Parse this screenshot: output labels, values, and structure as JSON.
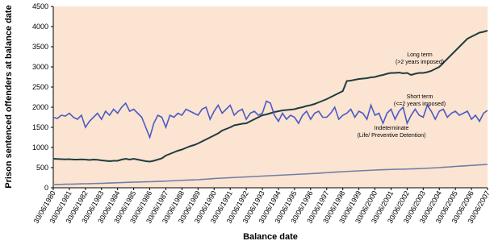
{
  "chart_data": {
    "type": "line",
    "x_label": "Balance date",
    "y_label": "Prison sentenced offenders at balance date",
    "ylim": [
      0,
      4500
    ],
    "yticks": [
      0,
      500,
      1000,
      1500,
      2000,
      2500,
      3000,
      3500,
      4000,
      4500
    ],
    "grid": false,
    "plot_background": "#fce4d2",
    "categories": [
      "30/06/1980",
      null,
      null,
      null,
      "30/06/1981",
      null,
      null,
      null,
      "30/06/1982",
      null,
      null,
      null,
      "30/06/1983",
      null,
      null,
      null,
      "30/06/1984",
      null,
      null,
      null,
      "30/06/1985",
      null,
      null,
      null,
      "30/06/1986",
      null,
      null,
      null,
      "30/06/1987",
      null,
      null,
      null,
      "30/06/1988",
      null,
      null,
      null,
      "30/06/1989",
      null,
      null,
      null,
      "30/06/1990",
      null,
      null,
      null,
      "30/06/1991",
      null,
      null,
      null,
      "30/06/1992",
      null,
      null,
      null,
      "30/06/1993",
      null,
      null,
      null,
      "30/06/1994",
      null,
      null,
      null,
      "30/06/1995",
      null,
      null,
      null,
      "30/06/1996",
      null,
      null,
      null,
      "30/06/1997",
      null,
      null,
      null,
      "30/06/1998",
      null,
      null,
      null,
      "30/06/1999",
      null,
      null,
      null,
      "30/06/2000",
      null,
      null,
      null,
      "30/06/2001",
      null,
      null,
      null,
      "30/06/2002",
      null,
      null,
      null,
      "30/06/2003",
      null,
      null,
      null,
      "30/06/2004",
      null,
      null,
      null,
      "30/06/2005",
      null,
      null,
      null,
      "30/06/2006",
      null,
      null,
      null,
      "30/06/2007"
    ],
    "series": [
      {
        "name": [
          "Long term",
          "(>2 years imposed)"
        ],
        "color": "#1f3d3f",
        "values": [
          720,
          715,
          710,
          705,
          710,
          700,
          700,
          705,
          700,
          690,
          700,
          695,
          680,
          670,
          660,
          670,
          670,
          700,
          720,
          700,
          720,
          700,
          680,
          660,
          650,
          670,
          700,
          730,
          800,
          840,
          880,
          920,
          950,
          990,
          1030,
          1060,
          1100,
          1150,
          1200,
          1250,
          1300,
          1350,
          1420,
          1460,
          1500,
          1550,
          1570,
          1590,
          1600,
          1650,
          1700,
          1750,
          1800,
          1820,
          1850,
          1880,
          1900,
          1920,
          1930,
          1940,
          1950,
          1980,
          2000,
          2030,
          2050,
          2080,
          2120,
          2160,
          2200,
          2250,
          2300,
          2350,
          2400,
          2650,
          2660,
          2680,
          2700,
          2710,
          2720,
          2740,
          2750,
          2780,
          2800,
          2830,
          2850,
          2850,
          2860,
          2840,
          2850,
          2800,
          2830,
          2850,
          2850,
          2870,
          2900,
          2950,
          3000,
          3100,
          3200,
          3300,
          3400,
          3500,
          3600,
          3700,
          3750,
          3800,
          3850,
          3870,
          3900
        ]
      },
      {
        "name": [
          "Short term",
          "(<=2 years imposed)"
        ],
        "color": "#4a5cc2",
        "values": [
          1750,
          1720,
          1800,
          1780,
          1850,
          1750,
          1700,
          1800,
          1500,
          1650,
          1750,
          1850,
          1700,
          1900,
          1800,
          1950,
          1850,
          2000,
          2100,
          1900,
          1950,
          1850,
          1750,
          1500,
          1250,
          1600,
          1800,
          1750,
          1500,
          1800,
          1750,
          1850,
          1800,
          1950,
          1900,
          1850,
          1800,
          1950,
          2000,
          1700,
          1900,
          2050,
          1850,
          1950,
          2050,
          1800,
          1900,
          1950,
          1700,
          1850,
          1900,
          1800,
          1850,
          2150,
          2100,
          1800,
          1650,
          1850,
          1700,
          1800,
          1750,
          1600,
          1800,
          1900,
          1700,
          1850,
          1900,
          1750,
          1750,
          1850,
          2000,
          1700,
          1800,
          1850,
          1950,
          1750,
          1900,
          1850,
          1700,
          2050,
          1800,
          1850,
          1600,
          1850,
          1950,
          1700,
          1900,
          2000,
          1600,
          1800,
          1950,
          1800,
          1750,
          2050,
          1900,
          1700,
          1900,
          1950,
          1750,
          1850,
          1900,
          1800,
          1850,
          1900,
          1700,
          1800,
          1650,
          1850,
          1920
        ]
      },
      {
        "name": [
          "Indeterminate",
          "(Life/ Preventive Detention)"
        ],
        "color": "#6f7ea8",
        "values": [
          80,
          82,
          85,
          88,
          90,
          92,
          95,
          98,
          100,
          102,
          105,
          108,
          110,
          114,
          118,
          122,
          125,
          129,
          133,
          137,
          140,
          142,
          145,
          148,
          150,
          154,
          158,
          162,
          165,
          170,
          175,
          180,
          185,
          189,
          193,
          197,
          200,
          208,
          215,
          222,
          230,
          235,
          240,
          245,
          250,
          255,
          260,
          265,
          270,
          275,
          280,
          285,
          290,
          295,
          300,
          305,
          310,
          315,
          320,
          325,
          330,
          335,
          340,
          345,
          350,
          356,
          362,
          368,
          375,
          381,
          388,
          394,
          400,
          405,
          410,
          415,
          420,
          425,
          430,
          435,
          440,
          444,
          448,
          452,
          455,
          458,
          460,
          462,
          465,
          469,
          472,
          476,
          480,
          485,
          490,
          495,
          500,
          508,
          515,
          522,
          530,
          536,
          542,
          548,
          555,
          561,
          568,
          574,
          580
        ]
      }
    ]
  }
}
